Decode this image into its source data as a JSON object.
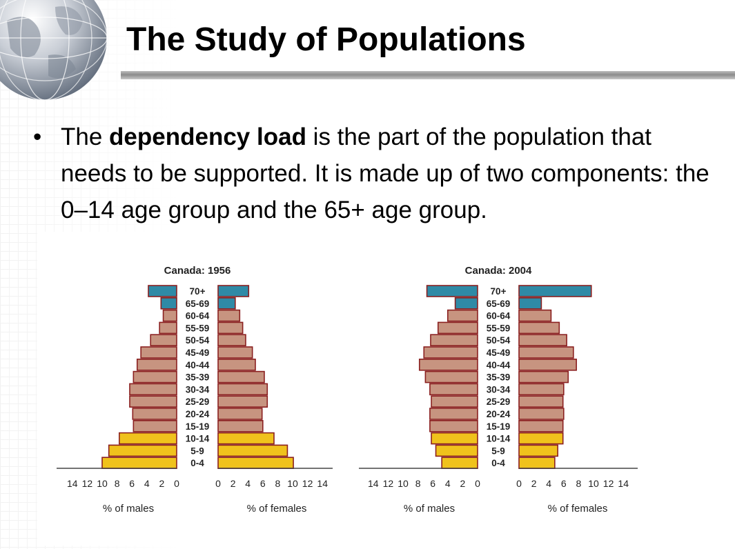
{
  "slide": {
    "title": "The Study of Populations",
    "bullet": {
      "marker": "•",
      "text_before": "The ",
      "bold_term": "dependency load",
      "text_after": " is the part of the population that needs to be supported. It is made up of two components: the 0–14 age group and the 65+ age group."
    }
  },
  "colors": {
    "working_age": "#c79480",
    "youth": "#f0c21c",
    "elderly": "#2f8aa6",
    "bar_outline": "#8a1f1f",
    "axis": "#444444"
  },
  "chart_data": [
    {
      "type": "bar",
      "orientation": "horizontal",
      "title": "Canada: 1956",
      "categories": [
        "70+",
        "65-69",
        "60-64",
        "55-59",
        "50-54",
        "45-49",
        "40-44",
        "35-39",
        "30-34",
        "25-29",
        "20-24",
        "15-19",
        "10-14",
        "5-9",
        "0-4"
      ],
      "series": [
        {
          "name": "% of males",
          "values": [
            3.8,
            2.1,
            1.8,
            2.3,
            3.5,
            4.8,
            5.3,
            5.8,
            6.3,
            6.3,
            5.9,
            5.8,
            7.7,
            9.1,
            10.0
          ]
        },
        {
          "name": "% of females",
          "values": [
            4.1,
            2.3,
            2.9,
            3.3,
            3.7,
            4.6,
            5.0,
            6.2,
            6.6,
            6.6,
            5.9,
            6.0,
            7.5,
            9.3,
            10.1
          ]
        }
      ],
      "xlabel": [
        "% of males",
        "% of females"
      ],
      "xticks": [
        "14",
        "12",
        "10",
        "8",
        "6",
        "4",
        "2",
        "0"
      ],
      "xlim": [
        0,
        14
      ],
      "age_bands": {
        "youth": [
          "0-4",
          "5-9",
          "10-14"
        ],
        "elderly": [
          "65-69",
          "70+"
        ]
      }
    },
    {
      "type": "bar",
      "orientation": "horizontal",
      "title": "Canada: 2004",
      "categories": [
        "70+",
        "65-69",
        "60-64",
        "55-59",
        "50-54",
        "45-49",
        "40-44",
        "35-39",
        "30-34",
        "25-29",
        "20-24",
        "15-19",
        "10-14",
        "5-9",
        "0-4"
      ],
      "series": [
        {
          "name": "% of males",
          "values": [
            6.8,
            3.0,
            4.0,
            5.3,
            6.3,
            7.2,
            7.8,
            7.0,
            6.4,
            6.2,
            6.4,
            6.4,
            6.2,
            5.6,
            4.8
          ]
        },
        {
          "name": "% of females",
          "values": [
            9.7,
            3.0,
            4.3,
            5.4,
            6.4,
            7.3,
            7.7,
            6.6,
            6.0,
            5.9,
            6.0,
            5.9,
            5.9,
            5.2,
            4.8
          ]
        }
      ],
      "xlabel": [
        "% of males",
        "% of females"
      ],
      "xticks": [
        "14",
        "12",
        "10",
        "8",
        "6",
        "4",
        "2",
        "0"
      ],
      "xlim": [
        0,
        14
      ],
      "age_bands": {
        "youth": [
          "0-4",
          "5-9",
          "10-14"
        ],
        "elderly": [
          "65-69",
          "70+"
        ]
      }
    }
  ]
}
